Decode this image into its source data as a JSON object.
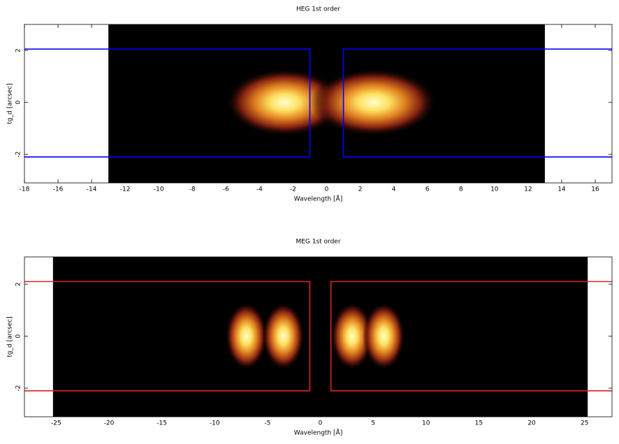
{
  "chart_data": [
    {
      "type": "heatmap",
      "title": "HEG 1st order",
      "xlabel": "Wavelength [Å]",
      "ylabel": "tg_d [arcsec]",
      "xlim": [
        -18,
        17
      ],
      "ylim": [
        -3.1,
        3
      ],
      "xticks": [
        -18,
        -16,
        -14,
        -12,
        -10,
        -8,
        -6,
        -4,
        -2,
        0,
        2,
        4,
        6,
        8,
        10,
        12,
        14,
        16
      ],
      "yticks": [
        -2,
        0,
        2
      ],
      "image_x": [
        -13,
        13
      ],
      "peaks": [
        -2.5,
        2.8
      ],
      "spread": [
        7,
        7.5
      ],
      "region_color": "#0000ff",
      "region_y": [
        -2.1,
        2.05
      ],
      "region_inner_x": [
        -1,
        1
      ]
    },
    {
      "type": "heatmap",
      "title": "MEG 1st order",
      "xlabel": "Wavelength [Å]",
      "ylabel": "tg_d [arcsec]",
      "xlim": [
        -28,
        27.6
      ],
      "ylim": [
        -3.1,
        3.05
      ],
      "xticks": [
        -25,
        -20,
        -15,
        -10,
        -5,
        0,
        5,
        10,
        15,
        20,
        25
      ],
      "yticks": [
        -2,
        0,
        2
      ],
      "image_x": [
        -25.3,
        25.3
      ],
      "peaks": [
        -7,
        -3.5,
        3,
        6
      ],
      "spread": [
        4,
        4,
        4,
        4
      ],
      "region_color": "#dd2222",
      "region_y": [
        -2.1,
        2.1
      ],
      "region_inner_x": [
        -1,
        1
      ]
    }
  ]
}
